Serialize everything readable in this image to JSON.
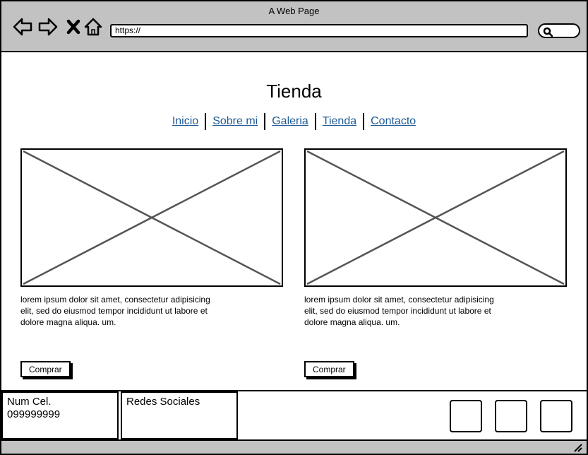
{
  "window": {
    "title": "A Web Page"
  },
  "toolbar": {
    "icons": [
      "back-arrow-icon",
      "forward-arrow-icon",
      "close-x-icon",
      "home-icon"
    ],
    "url": "https://",
    "search_icon": "search-icon"
  },
  "page": {
    "title": "Tienda",
    "nav": [
      "Inicio",
      "Sobre mi",
      "Galeria",
      "Tienda",
      "Contacto"
    ]
  },
  "cards": [
    {
      "text": "lorem ipsum dolor sit amet, consectetur adipisicing elit, sed do eiusmod tempor incididunt ut labore et dolore magna aliqua. um.",
      "button": "Comprar"
    },
    {
      "text": "lorem ipsum dolor sit amet, consectetur adipisicing elit, sed do eiusmod tempor incididunt ut labore et dolore magna aliqua. um.",
      "button": "Comprar"
    }
  ],
  "footer": {
    "phone_label": "Num Cel.",
    "phone_number": "099999999",
    "social_label": "Redes Sociales"
  },
  "colors": {
    "chrome": "#c2c2c2",
    "link": "#1f5a96",
    "placeholder_stroke": "#555555"
  }
}
